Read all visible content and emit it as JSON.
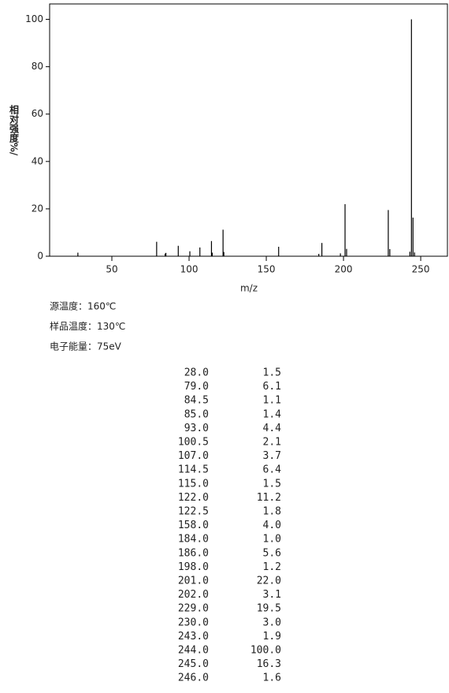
{
  "chart_data": {
    "type": "bar",
    "ylabel": "相对强度%/",
    "xlabel": "m/z",
    "x": [
      28,
      79,
      84.5,
      85,
      93,
      100.5,
      107,
      114.5,
      115,
      122,
      122.5,
      158,
      184,
      186,
      198,
      201,
      202,
      229,
      230,
      243,
      244,
      245,
      246
    ],
    "values": [
      1.5,
      6.1,
      1.1,
      1.4,
      4.4,
      2.1,
      3.7,
      6.4,
      1.5,
      11.2,
      1.8,
      4.0,
      1.0,
      5.6,
      1.2,
      22.0,
      3.1,
      19.5,
      3.0,
      1.9,
      100.0,
      16.3,
      1.6
    ],
    "color": "#000000",
    "xlim": [
      9.7,
      267.3
    ],
    "ylim": [
      0,
      106.5
    ],
    "xticks": [
      50,
      100,
      150,
      200,
      250
    ],
    "yticks": [
      0,
      20,
      40,
      60,
      80,
      100
    ]
  },
  "conditions": [
    "源温度：160℃",
    "样品温度：130℃",
    "电子能量：75eV"
  ],
  "table": {
    "rows": [
      [
        "28.0",
        "1.5"
      ],
      [
        "79.0",
        "6.1"
      ],
      [
        "84.5",
        "1.1"
      ],
      [
        "85.0",
        "1.4"
      ],
      [
        "93.0",
        "4.4"
      ],
      [
        "100.5",
        "2.1"
      ],
      [
        "107.0",
        "3.7"
      ],
      [
        "114.5",
        "6.4"
      ],
      [
        "115.0",
        "1.5"
      ],
      [
        "122.0",
        "11.2"
      ],
      [
        "122.5",
        "1.8"
      ],
      [
        "158.0",
        "4.0"
      ],
      [
        "184.0",
        "1.0"
      ],
      [
        "186.0",
        "5.6"
      ],
      [
        "198.0",
        "1.2"
      ],
      [
        "201.0",
        "22.0"
      ],
      [
        "202.0",
        "3.1"
      ],
      [
        "229.0",
        "19.5"
      ],
      [
        "230.0",
        "3.0"
      ],
      [
        "243.0",
        "1.9"
      ],
      [
        "244.0",
        "100.0"
      ],
      [
        "245.0",
        "16.3"
      ],
      [
        "246.0",
        "1.6"
      ]
    ]
  }
}
